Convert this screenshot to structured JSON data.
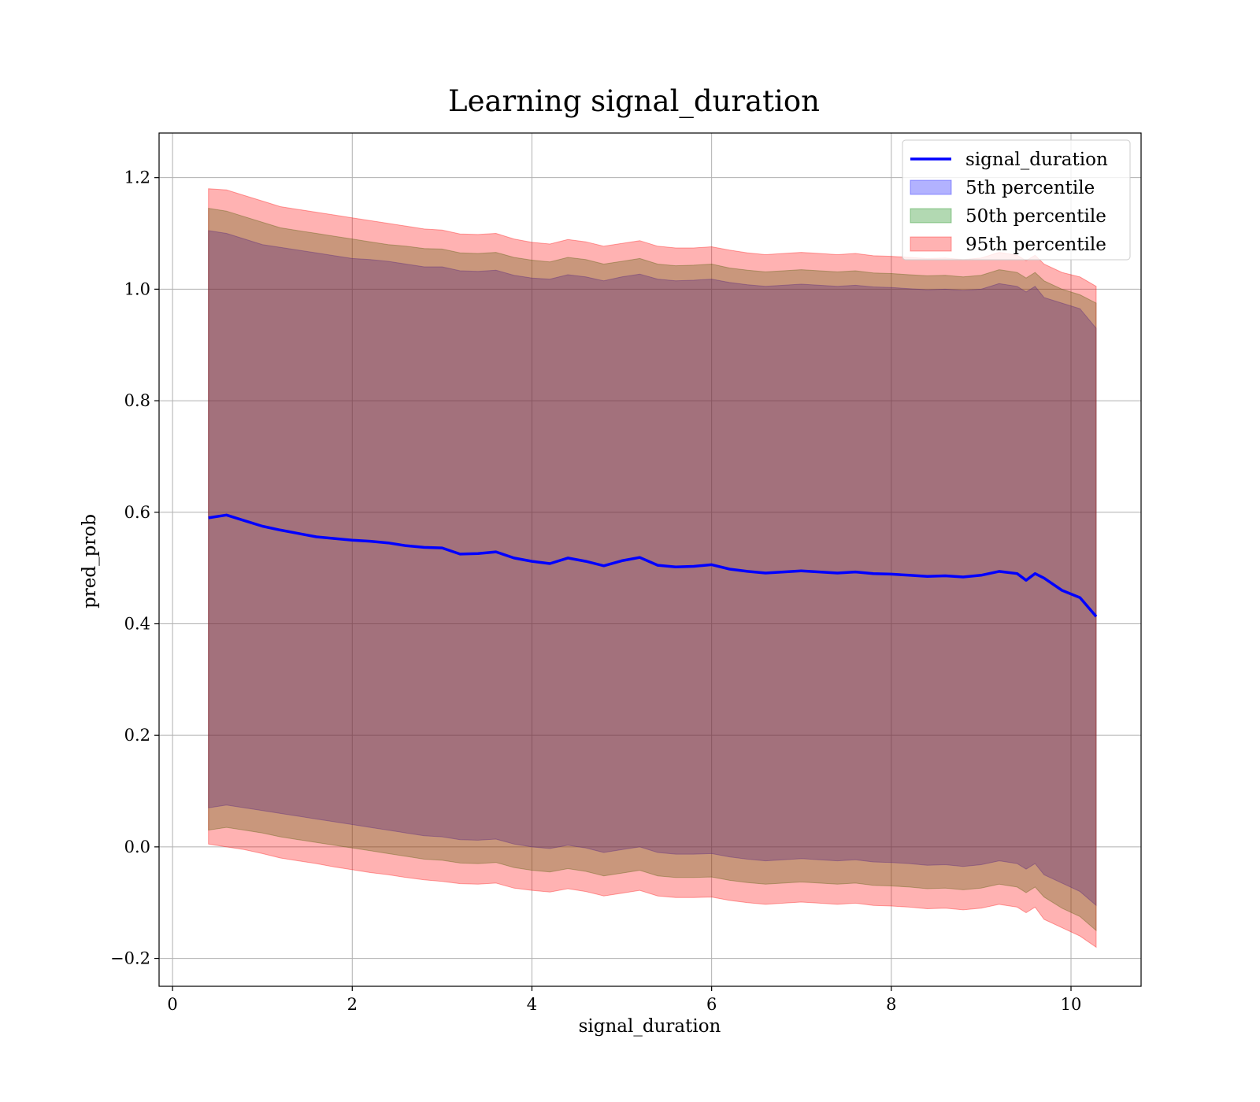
{
  "chart_data": {
    "type": "line",
    "title": "Learning signal_duration",
    "xlabel": "signal_duration",
    "ylabel": "pred_prob",
    "xlim": [
      -0.15,
      10.78
    ],
    "ylim": [
      -0.25,
      1.28
    ],
    "xticks": [
      0,
      2,
      4,
      6,
      8,
      10
    ],
    "yticks": [
      -0.2,
      0.0,
      0.2,
      0.4,
      0.6,
      0.8,
      1.0,
      1.2
    ],
    "xtick_labels": [
      "0",
      "2",
      "4",
      "6",
      "8",
      "10"
    ],
    "ytick_labels": [
      "−0.2",
      "0.0",
      "0.2",
      "0.4",
      "0.6",
      "0.8",
      "1.0",
      "1.2"
    ],
    "grid": true,
    "legend_position": "top-right",
    "x": [
      0.4,
      0.6,
      0.8,
      1.0,
      1.2,
      1.4,
      1.6,
      1.8,
      2.0,
      2.2,
      2.4,
      2.6,
      2.8,
      3.0,
      3.2,
      3.4,
      3.6,
      3.8,
      4.0,
      4.2,
      4.4,
      4.6,
      4.8,
      5.0,
      5.2,
      5.4,
      5.6,
      5.8,
      6.0,
      6.2,
      6.4,
      6.6,
      6.8,
      7.0,
      7.2,
      7.4,
      7.6,
      7.8,
      8.0,
      8.2,
      8.4,
      8.6,
      8.8,
      9.0,
      9.2,
      9.4,
      9.5,
      9.6,
      9.7,
      9.9,
      10.1,
      10.28
    ],
    "series": [
      {
        "name": "signal_duration",
        "kind": "line",
        "color": "#0000ff",
        "values": [
          0.59,
          0.595,
          0.585,
          0.575,
          0.568,
          0.562,
          0.556,
          0.553,
          0.55,
          0.548,
          0.545,
          0.54,
          0.537,
          0.536,
          0.525,
          0.526,
          0.529,
          0.518,
          0.512,
          0.508,
          0.518,
          0.512,
          0.504,
          0.513,
          0.519,
          0.505,
          0.502,
          0.503,
          0.506,
          0.498,
          0.494,
          0.491,
          0.493,
          0.495,
          0.493,
          0.491,
          0.493,
          0.49,
          0.489,
          0.487,
          0.485,
          0.486,
          0.484,
          0.487,
          0.494,
          0.49,
          0.478,
          0.49,
          0.482,
          0.46,
          0.447,
          0.413
        ]
      },
      {
        "name": "5th percentile",
        "kind": "band",
        "color": "#0000ff",
        "upper": [
          1.105,
          1.1,
          1.09,
          1.08,
          1.075,
          1.07,
          1.065,
          1.06,
          1.055,
          1.053,
          1.05,
          1.045,
          1.04,
          1.04,
          1.033,
          1.032,
          1.034,
          1.025,
          1.02,
          1.018,
          1.026,
          1.022,
          1.015,
          1.022,
          1.027,
          1.018,
          1.015,
          1.016,
          1.018,
          1.012,
          1.008,
          1.005,
          1.007,
          1.009,
          1.007,
          1.005,
          1.007,
          1.004,
          1.003,
          1.001,
          0.999,
          1.0,
          0.998,
          1.0,
          1.01,
          1.005,
          0.995,
          1.005,
          0.985,
          0.975,
          0.965,
          0.93
        ],
        "lower": [
          0.07,
          0.075,
          0.07,
          0.065,
          0.06,
          0.055,
          0.05,
          0.045,
          0.04,
          0.035,
          0.03,
          0.025,
          0.02,
          0.018,
          0.013,
          0.012,
          0.014,
          0.005,
          0.0,
          -0.003,
          0.003,
          -0.002,
          -0.01,
          -0.005,
          0.0,
          -0.01,
          -0.013,
          -0.013,
          -0.012,
          -0.018,
          -0.022,
          -0.025,
          -0.023,
          -0.021,
          -0.023,
          -0.025,
          -0.023,
          -0.027,
          -0.028,
          -0.03,
          -0.033,
          -0.032,
          -0.035,
          -0.032,
          -0.025,
          -0.03,
          -0.04,
          -0.03,
          -0.05,
          -0.065,
          -0.08,
          -0.105
        ]
      },
      {
        "name": "50th percentile",
        "kind": "band",
        "color": "#008000",
        "upper": [
          1.145,
          1.14,
          1.13,
          1.12,
          1.11,
          1.105,
          1.1,
          1.095,
          1.09,
          1.085,
          1.08,
          1.077,
          1.073,
          1.072,
          1.065,
          1.064,
          1.066,
          1.057,
          1.052,
          1.049,
          1.057,
          1.053,
          1.045,
          1.05,
          1.055,
          1.045,
          1.042,
          1.043,
          1.045,
          1.038,
          1.034,
          1.031,
          1.033,
          1.035,
          1.033,
          1.031,
          1.033,
          1.029,
          1.028,
          1.026,
          1.024,
          1.025,
          1.022,
          1.025,
          1.035,
          1.03,
          1.02,
          1.03,
          1.015,
          1.0,
          0.99,
          0.975
        ],
        "lower": [
          0.03,
          0.035,
          0.03,
          0.025,
          0.018,
          0.013,
          0.008,
          0.003,
          -0.002,
          -0.007,
          -0.012,
          -0.017,
          -0.022,
          -0.024,
          -0.029,
          -0.03,
          -0.028,
          -0.037,
          -0.042,
          -0.045,
          -0.039,
          -0.044,
          -0.052,
          -0.047,
          -0.042,
          -0.052,
          -0.055,
          -0.055,
          -0.054,
          -0.06,
          -0.064,
          -0.067,
          -0.065,
          -0.063,
          -0.065,
          -0.067,
          -0.065,
          -0.069,
          -0.07,
          -0.072,
          -0.075,
          -0.074,
          -0.077,
          -0.074,
          -0.067,
          -0.072,
          -0.082,
          -0.072,
          -0.09,
          -0.11,
          -0.125,
          -0.15
        ]
      },
      {
        "name": "95th percentile",
        "kind": "band",
        "color": "#ff0000",
        "upper": [
          1.18,
          1.178,
          1.168,
          1.158,
          1.148,
          1.143,
          1.138,
          1.133,
          1.128,
          1.123,
          1.118,
          1.113,
          1.108,
          1.106,
          1.099,
          1.098,
          1.1,
          1.09,
          1.084,
          1.081,
          1.089,
          1.085,
          1.077,
          1.082,
          1.087,
          1.077,
          1.074,
          1.074,
          1.076,
          1.07,
          1.065,
          1.062,
          1.064,
          1.066,
          1.064,
          1.062,
          1.064,
          1.06,
          1.059,
          1.057,
          1.055,
          1.056,
          1.053,
          1.056,
          1.066,
          1.061,
          1.051,
          1.061,
          1.045,
          1.03,
          1.022,
          1.005
        ],
        "lower": [
          0.005,
          0.0,
          -0.005,
          -0.012,
          -0.02,
          -0.025,
          -0.03,
          -0.036,
          -0.041,
          -0.046,
          -0.05,
          -0.055,
          -0.059,
          -0.062,
          -0.066,
          -0.067,
          -0.065,
          -0.074,
          -0.078,
          -0.081,
          -0.075,
          -0.08,
          -0.088,
          -0.083,
          -0.078,
          -0.088,
          -0.091,
          -0.091,
          -0.09,
          -0.096,
          -0.1,
          -0.103,
          -0.101,
          -0.099,
          -0.101,
          -0.103,
          -0.101,
          -0.105,
          -0.106,
          -0.108,
          -0.111,
          -0.11,
          -0.113,
          -0.11,
          -0.103,
          -0.108,
          -0.118,
          -0.108,
          -0.13,
          -0.145,
          -0.16,
          -0.18
        ]
      }
    ]
  }
}
